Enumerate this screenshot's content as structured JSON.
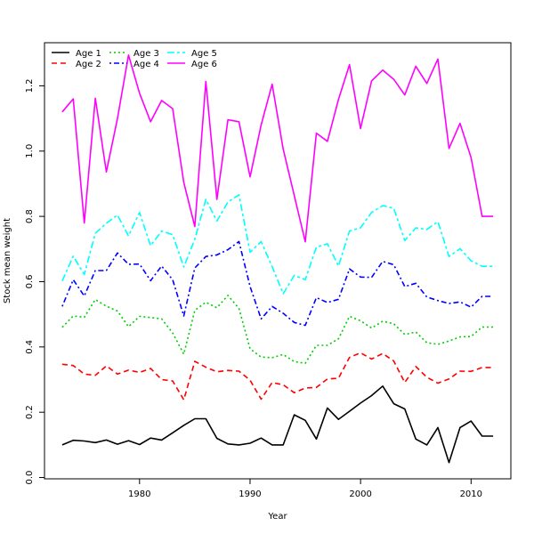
{
  "chart_data": {
    "type": "line",
    "title": "",
    "xlabel": "Year",
    "ylabel": "Stock mean weight",
    "xlim": [
      1971.4,
      2013.6
    ],
    "ylim": [
      -0.004,
      1.332
    ],
    "x_ticks": [
      1980,
      1990,
      2000,
      2010
    ],
    "y_ticks": [
      0.0,
      0.2,
      0.4,
      0.6,
      0.8,
      1.0,
      1.2
    ],
    "y_tick_labels": [
      "0.0",
      "0.2",
      "0.4",
      "0.6",
      "0.8",
      "1.0",
      "1.2"
    ],
    "grid": false,
    "legend_position": "top-left",
    "x": [
      1973,
      1974,
      1975,
      1976,
      1977,
      1978,
      1979,
      1980,
      1981,
      1982,
      1983,
      1984,
      1985,
      1986,
      1987,
      1988,
      1989,
      1990,
      1991,
      1992,
      1993,
      1994,
      1995,
      1996,
      1997,
      1998,
      1999,
      2000,
      2001,
      2002,
      2003,
      2004,
      2005,
      2006,
      2007,
      2008,
      2009,
      2010,
      2011,
      2012
    ],
    "series": [
      {
        "name": "Age 1",
        "color": "#000000",
        "dash": "solid",
        "values": [
          0.1,
          0.114,
          0.112,
          0.107,
          0.115,
          0.102,
          0.113,
          0.101,
          0.121,
          0.115,
          0.137,
          0.16,
          0.18,
          0.18,
          0.12,
          0.103,
          0.1,
          0.105,
          0.121,
          0.1,
          0.1,
          0.192,
          0.175,
          0.118,
          0.213,
          0.178,
          0.203,
          0.228,
          0.251,
          0.28,
          0.226,
          0.21,
          0.118,
          0.1,
          0.153,
          0.046,
          0.153,
          0.173,
          0.127,
          0.127
        ]
      },
      {
        "name": "Age 2",
        "color": "#ff0000",
        "dash": "long-dash",
        "values": [
          0.347,
          0.343,
          0.317,
          0.313,
          0.342,
          0.317,
          0.329,
          0.322,
          0.334,
          0.3,
          0.296,
          0.238,
          0.356,
          0.338,
          0.324,
          0.328,
          0.326,
          0.298,
          0.24,
          0.291,
          0.284,
          0.26,
          0.274,
          0.276,
          0.302,
          0.304,
          0.368,
          0.382,
          0.363,
          0.38,
          0.357,
          0.291,
          0.34,
          0.307,
          0.289,
          0.302,
          0.326,
          0.325,
          0.337,
          0.337
        ]
      },
      {
        "name": "Age 3",
        "color": "#00cd00",
        "dash": "dotted",
        "values": [
          0.46,
          0.495,
          0.491,
          0.545,
          0.525,
          0.51,
          0.462,
          0.494,
          0.49,
          0.486,
          0.443,
          0.378,
          0.512,
          0.537,
          0.52,
          0.558,
          0.518,
          0.394,
          0.369,
          0.367,
          0.377,
          0.355,
          0.35,
          0.405,
          0.405,
          0.425,
          0.494,
          0.48,
          0.458,
          0.479,
          0.471,
          0.438,
          0.446,
          0.413,
          0.408,
          0.418,
          0.431,
          0.432,
          0.461,
          0.461
        ]
      },
      {
        "name": "Age 4",
        "color": "#0000ff",
        "dash": "dot-dash",
        "values": [
          0.524,
          0.606,
          0.556,
          0.634,
          0.634,
          0.688,
          0.653,
          0.654,
          0.603,
          0.648,
          0.606,
          0.495,
          0.642,
          0.677,
          0.682,
          0.698,
          0.723,
          0.585,
          0.486,
          0.524,
          0.503,
          0.475,
          0.466,
          0.551,
          0.536,
          0.546,
          0.639,
          0.614,
          0.613,
          0.662,
          0.652,
          0.585,
          0.595,
          0.553,
          0.542,
          0.533,
          0.538,
          0.522,
          0.555,
          0.555
        ]
      },
      {
        "name": "Age 5",
        "color": "#00ffff",
        "dash": "two-dash",
        "values": [
          0.602,
          0.678,
          0.622,
          0.748,
          0.779,
          0.804,
          0.74,
          0.812,
          0.71,
          0.755,
          0.744,
          0.645,
          0.73,
          0.852,
          0.786,
          0.844,
          0.866,
          0.69,
          0.723,
          0.646,
          0.563,
          0.619,
          0.606,
          0.706,
          0.716,
          0.648,
          0.755,
          0.765,
          0.812,
          0.833,
          0.825,
          0.726,
          0.765,
          0.76,
          0.784,
          0.677,
          0.701,
          0.664,
          0.647,
          0.647
        ]
      },
      {
        "name": "Age 6",
        "color": "#ff00ff",
        "dash": "solid",
        "values": [
          1.12,
          1.16,
          0.78,
          1.162,
          0.936,
          1.1,
          1.294,
          1.177,
          1.09,
          1.155,
          1.13,
          0.904,
          0.769,
          1.213,
          0.852,
          1.096,
          1.09,
          0.921,
          1.08,
          1.205,
          1.006,
          0.864,
          0.722,
          1.055,
          1.03,
          1.158,
          1.265,
          1.069,
          1.215,
          1.248,
          1.22,
          1.172,
          1.26,
          1.207,
          1.282,
          1.008,
          1.085,
          0.98,
          0.8,
          0.8
        ]
      }
    ]
  }
}
